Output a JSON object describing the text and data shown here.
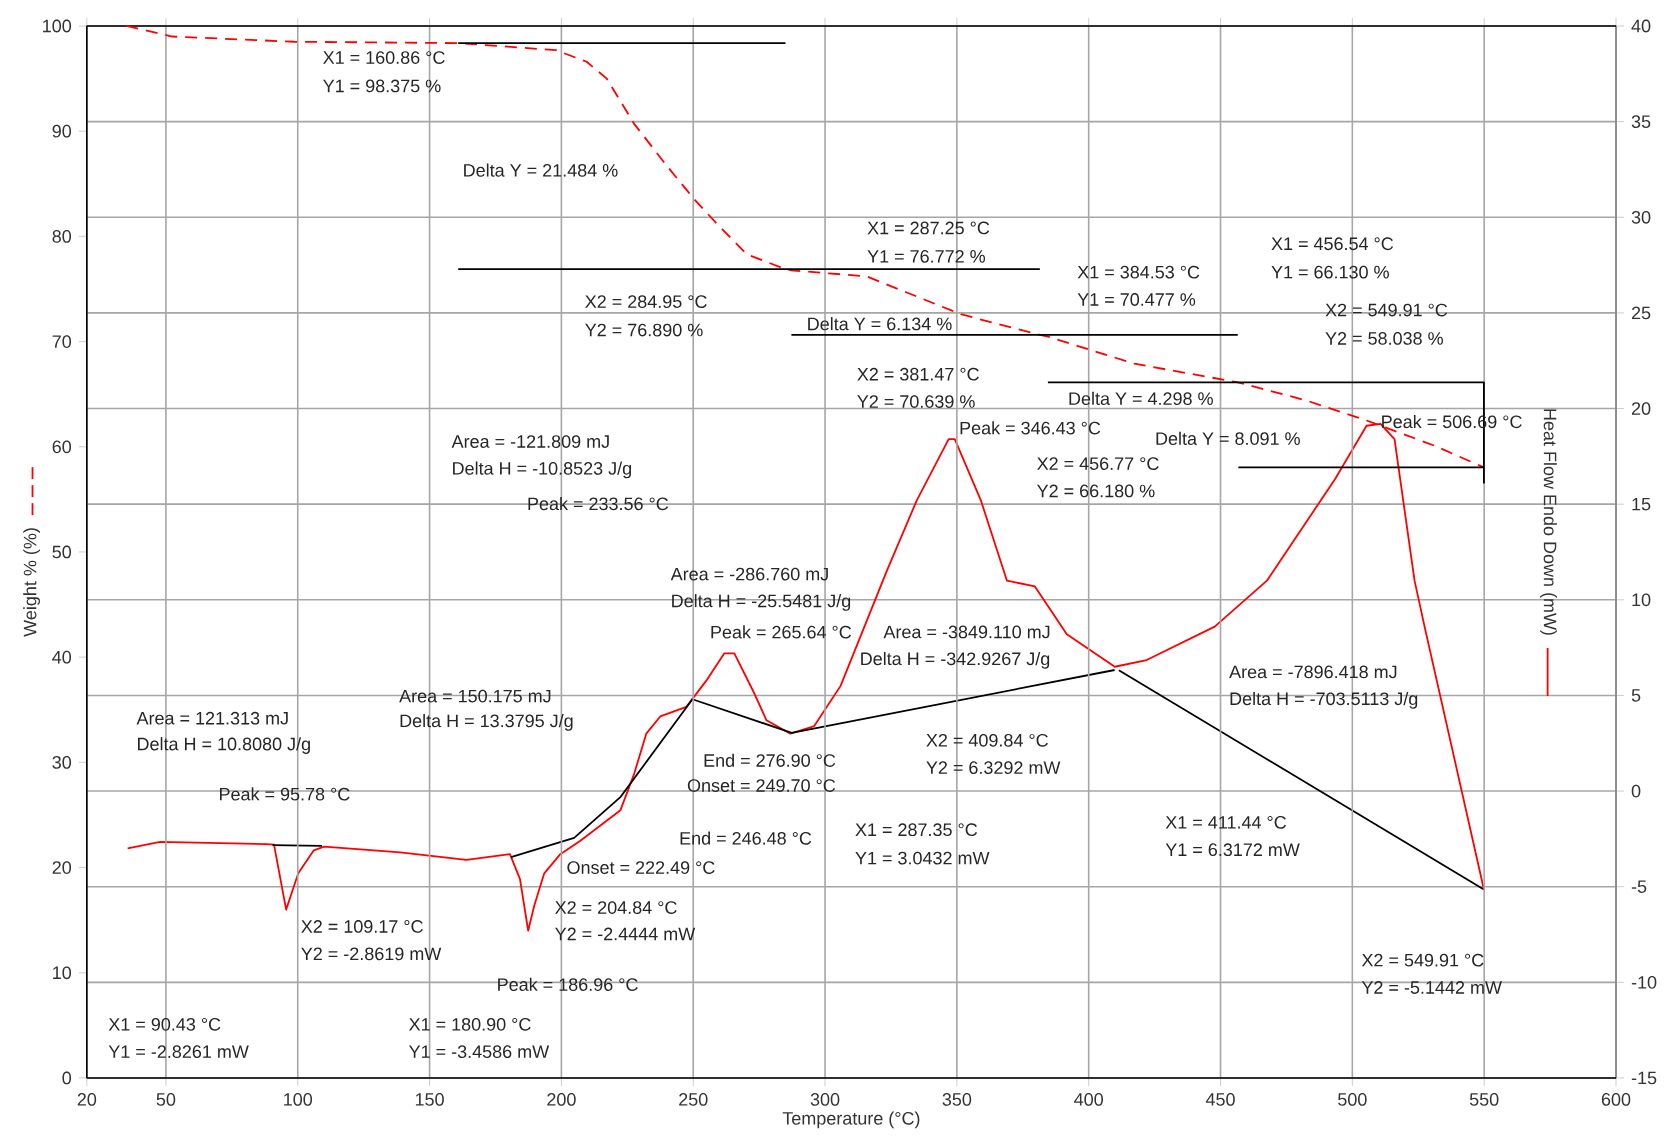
{
  "chart_data": {
    "type": "line",
    "xlabel": "Temperature (°C)",
    "ylabel": "Weight % (%)",
    "y2label": "Heat Flow Endo Down (mW)",
    "xlim": [
      20,
      600
    ],
    "xticks": [
      20,
      50,
      100,
      150,
      200,
      250,
      300,
      350,
      400,
      450,
      500,
      550,
      600
    ],
    "ylim": [
      0,
      100
    ],
    "yticks": [
      0,
      10,
      20,
      30,
      40,
      50,
      60,
      70,
      80,
      90,
      100
    ],
    "y2lim": [
      -15,
      40
    ],
    "y2ticks": [
      -15,
      -10,
      -5,
      0,
      5,
      10,
      15,
      20,
      25,
      30,
      35,
      40
    ],
    "grid": true,
    "series": [
      {
        "color": "#ff0000",
        "line_style": "dashed",
        "x": [
          35,
          52.3,
          98.6,
          160.86,
          198,
          209.6,
          217.2,
          227.6,
          240,
          250.5,
          259,
          270.3,
          284.95,
          287.25,
          315.8,
          351.5,
          381.47,
          384.53,
          417.3,
          456.54,
          482.6,
          505.4,
          531.2,
          549.91
        ],
        "values": [
          100,
          99.0,
          98.5,
          98.375,
          97.7,
          96.6,
          95.0,
          90.7,
          86.7,
          83.5,
          81.2,
          78.3,
          76.89,
          76.772,
          76.2,
          72.6,
          70.639,
          70.477,
          67.9,
          66.13,
          64.4,
          62.5,
          60.1,
          58.038
        ]
      },
      {
        "color": "#ff0000",
        "line_style": "solid",
        "axis": "y2",
        "x": [
          35.5,
          47.8,
          88,
          91,
          95.6,
          100.2,
          106.1,
          110,
          138.9,
          164,
          180.5,
          184.3,
          187.4,
          189.7,
          193.5,
          199.6,
          207.2,
          214.8,
          222.4,
          227.6,
          232.2,
          237.5,
          247.4,
          255.1,
          261.8,
          265.6,
          273.2,
          277.8,
          286.9,
          295.9,
          305.9,
          323.4,
          334.8,
          346.9,
          349.2,
          359.1,
          369,
          379.6,
          391.7,
          409.9,
          422,
          447.8,
          467.6,
          493.4,
          505.4,
          510.7,
          516,
          523.6,
          527.4,
          549.91
        ],
        "values": [
          -3.0,
          -2.66,
          -2.77,
          -2.8,
          -6.2,
          -4.3,
          -3.1,
          -2.9,
          -3.2,
          -3.6,
          -3.3,
          -4.6,
          -7.3,
          -6.0,
          -4.3,
          -3.3,
          -2.6,
          -1.8,
          -1.0,
          0.9,
          3.0,
          3.9,
          4.4,
          5.8,
          7.2,
          7.2,
          5.1,
          3.7,
          3.0,
          3.4,
          5.5,
          11.5,
          15.2,
          18.4,
          18.4,
          15.2,
          11.0,
          10.7,
          8.2,
          6.5,
          6.85,
          8.6,
          11.0,
          16.3,
          19.1,
          19.2,
          18.4,
          11.0,
          8.6,
          -5.1442
        ]
      },
      {
        "color": "#000000",
        "line_style": "solid",
        "axis": "y2",
        "x": [
          90.43,
          109.17
        ],
        "values": [
          -2.8261,
          -2.8619
        ]
      },
      {
        "color": "#000000",
        "line_style": "solid",
        "axis": "y2",
        "x": [
          180.9,
          204.84,
          222.49,
          249.7,
          287.35,
          409.84
        ],
        "values": [
          -3.4586,
          -2.4444,
          -0.3,
          4.8,
          3.0432,
          6.3292
        ]
      },
      {
        "color": "#000000",
        "line_style": "solid",
        "axis": "y2",
        "x": [
          411.44,
          549.91
        ],
        "values": [
          6.3172,
          -5.1442
        ]
      },
      {
        "color": "#000000",
        "line_style": "solid",
        "x": [
          160.86,
          285
        ],
        "values": [
          98.375,
          98.375
        ]
      },
      {
        "color": "#000000",
        "line_style": "solid",
        "x": [
          160.86,
          381.47
        ],
        "values": [
          76.89,
          76.89
        ]
      },
      {
        "color": "#000000",
        "line_style": "solid",
        "x": [
          287.25,
          456.54
        ],
        "values": [
          70.639,
          70.639
        ]
      },
      {
        "color": "#000000",
        "line_style": "solid",
        "x": [
          384.53,
          549.91,
          549.91
        ],
        "values": [
          66.13,
          66.13,
          56.5
        ]
      },
      {
        "color": "#000000",
        "line_style": "solid",
        "x": [
          456.77,
          549.91
        ],
        "values": [
          58.038,
          58.038
        ]
      }
    ],
    "annotations": [
      "X1 = 160.86 °C",
      "Y1 = 98.375 %",
      "Delta Y = 21.484 %",
      "X2 = 284.95 °C",
      "Y2 = 76.890 %",
      "Area = -121.809 mJ",
      "Delta H = -10.8523 J/g",
      "Peak = 233.56 °C",
      "X1 = 287.25 °C",
      "Y1 = 76.772 %",
      "X1 = 384.53 °C",
      "Y1 = 70.477 %",
      "Delta Y = 6.134 %",
      "X1 = 456.54 °C",
      "Y1 = 66.130 %",
      "X2 = 549.91 °C",
      "Y2 = 58.038 %",
      "Delta Y = 4.298 %",
      "X2 = 381.47 °C",
      "Y2 = 70.639 %",
      "Peak = 346.43 °C",
      "X2 = 456.77 °C",
      "Y2 = 66.180 %",
      "Delta Y = 8.091 %",
      "Peak = 506.69 °C",
      "Area = -286.760 mJ",
      "Delta H = -25.5481 J/g",
      "Peak = 265.64 °C",
      "Area = 150.175 mJ",
      "Delta H = 13.3795 J/g",
      "Area = 121.313 mJ",
      "Delta H = 10.8080 J/g",
      "Peak = 95.78 °C",
      "End = 276.90 °C",
      "Onset = 249.70 °C",
      "End = 246.48 °C",
      "Onset = 222.49 °C",
      "X2 = 204.84 °C",
      "Y2 = -2.4444 mW",
      "X2 = 109.17 °C",
      "Y2 = -2.8619 mW",
      "Peak = 186.96 °C",
      "X1 = 90.43 °C",
      "Y1 = -2.8261 mW",
      "X1 = 180.90 °C",
      "Y1 = -3.4586 mW",
      "Area = -3849.110 mJ",
      "Delta H = -342.9267 J/g",
      "Area = -7896.418 mJ",
      "Delta H = -703.5113 J/g",
      "X2 = 409.84 °C",
      "Y2 = 6.3292 mW",
      "X1 = 287.35 °C",
      "Y1 = 3.0432 mW",
      "X1 = 411.44 °C",
      "Y1 = 6.3172 mW",
      "X2 = 549.91 °C",
      "Y2 = -5.1442 mW"
    ]
  }
}
